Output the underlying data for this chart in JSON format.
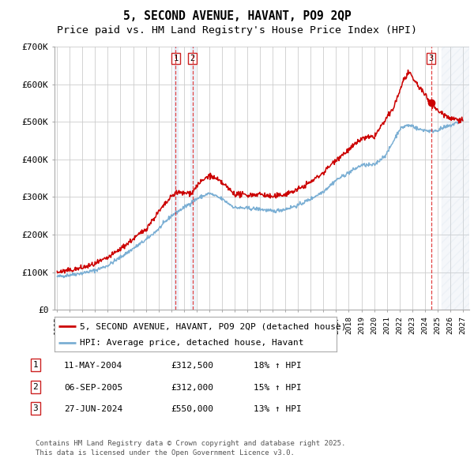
{
  "title": "5, SECOND AVENUE, HAVANT, PO9 2QP",
  "subtitle": "Price paid vs. HM Land Registry's House Price Index (HPI)",
  "background_color": "#ffffff",
  "plot_bg_color": "#ffffff",
  "grid_color": "#cccccc",
  "red_line_color": "#cc0000",
  "blue_line_color": "#7bafd4",
  "ylim": [
    0,
    700000
  ],
  "yticks": [
    0,
    100000,
    200000,
    300000,
    400000,
    500000,
    600000,
    700000
  ],
  "ytick_labels": [
    "£0",
    "£100K",
    "£200K",
    "£300K",
    "£400K",
    "£500K",
    "£600K",
    "£700K"
  ],
  "xlim_start": 1994.8,
  "xlim_end": 2027.5,
  "transactions": [
    {
      "num": 1,
      "date": "11-MAY-2004",
      "price": 312500,
      "pct": "18%",
      "dir": "↑",
      "year": 2004.36
    },
    {
      "num": 2,
      "date": "06-SEP-2005",
      "price": 312000,
      "pct": "15%",
      "dir": "↑",
      "year": 2005.68
    },
    {
      "num": 3,
      "date": "27-JUN-2024",
      "price": 550000,
      "pct": "13%",
      "dir": "↑",
      "year": 2024.49
    }
  ],
  "legend_red": "5, SECOND AVENUE, HAVANT, PO9 2QP (detached house)",
  "legend_blue": "HPI: Average price, detached house, Havant",
  "footer1": "Contains HM Land Registry data © Crown copyright and database right 2025.",
  "footer2": "This data is licensed under the Open Government Licence v3.0.",
  "title_fontsize": 10.5,
  "subtitle_fontsize": 9.5,
  "axis_fontsize": 8,
  "legend_fontsize": 8,
  "table_fontsize": 8,
  "footer_fontsize": 6.5
}
